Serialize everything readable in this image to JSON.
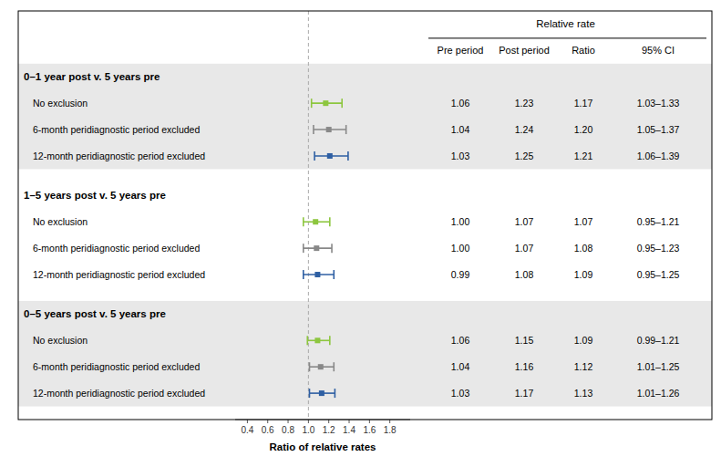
{
  "chart_data": {
    "type": "forest",
    "header_label": "Relative rate",
    "col_headers": [
      "Pre period",
      "Post period",
      "Ratio",
      "95% CI"
    ],
    "xlabel": "Ratio of relative rates",
    "xlim": [
      0.28,
      2.0
    ],
    "xticks": [
      0.4,
      0.6,
      0.8,
      {
        "value": 1.0,
        "label": "1.0"
      },
      1.2,
      1.4,
      1.6,
      1.8
    ],
    "reference_line": 1.0,
    "marker": "square",
    "groups": [
      {
        "title": "0–1 year post v. 5 years pre",
        "color": "#e8e8e8",
        "rows": [
          {
            "label": "No exclusion",
            "point": 1.17,
            "ci_low": 1.03,
            "ci_high": 1.33,
            "pre": "1.06",
            "post": "1.23",
            "ratio": "1.17",
            "ci_text": "1.03–1.33",
            "color": "#8dc63f"
          },
          {
            "label": "6-month peridiagnostic period excluded",
            "point": 1.2,
            "ci_low": 1.05,
            "ci_high": 1.37,
            "pre": "1.04",
            "post": "1.24",
            "ratio": "1.20",
            "ci_text": "1.05–1.37",
            "color": "#888888"
          },
          {
            "label": "12-month peridiagnostic period excluded",
            "point": 1.21,
            "ci_low": 1.06,
            "ci_high": 1.39,
            "pre": "1.03",
            "post": "1.25",
            "ratio": "1.21",
            "ci_text": "1.06–1.39",
            "color": "#2e5fa3"
          }
        ]
      },
      {
        "title": "1–5 years post v. 5 years pre",
        "color": "#ffffff",
        "rows": [
          {
            "label": "No exclusion",
            "point": 1.07,
            "ci_low": 0.95,
            "ci_high": 1.21,
            "pre": "1.00",
            "post": "1.07",
            "ratio": "1.07",
            "ci_text": "0.95–1.21",
            "color": "#8dc63f"
          },
          {
            "label": "6-month peridiagnostic period excluded",
            "point": 1.08,
            "ci_low": 0.95,
            "ci_high": 1.23,
            "pre": "1.00",
            "post": "1.07",
            "ratio": "1.08",
            "ci_text": "0.95–1.23",
            "color": "#888888"
          },
          {
            "label": "12-month peridiagnostic period excluded",
            "point": 1.09,
            "ci_low": 0.95,
            "ci_high": 1.25,
            "pre": "0.99",
            "post": "1.08",
            "ratio": "1.09",
            "ci_text": "0.95–1.25",
            "color": "#2e5fa3"
          }
        ]
      },
      {
        "title": "0–5 years post v. 5 years pre",
        "color": "#e8e8e8",
        "rows": [
          {
            "label": "No exclusion",
            "point": 1.09,
            "ci_low": 0.99,
            "ci_high": 1.21,
            "pre": "1.06",
            "post": "1.15",
            "ratio": "1.09",
            "ci_text": "0.99–1.21",
            "color": "#8dc63f"
          },
          {
            "label": "6-month peridiagnostic period excluded",
            "point": 1.12,
            "ci_low": 1.01,
            "ci_high": 1.25,
            "pre": "1.04",
            "post": "1.16",
            "ratio": "1.12",
            "ci_text": "1.01–1.25",
            "color": "#888888"
          },
          {
            "label": "12-month peridiagnostic period excluded",
            "point": 1.13,
            "ci_low": 1.01,
            "ci_high": 1.26,
            "pre": "1.03",
            "post": "1.17",
            "ratio": "1.13",
            "ci_text": "1.01–1.26",
            "color": "#2e5fa3"
          }
        ]
      }
    ]
  }
}
